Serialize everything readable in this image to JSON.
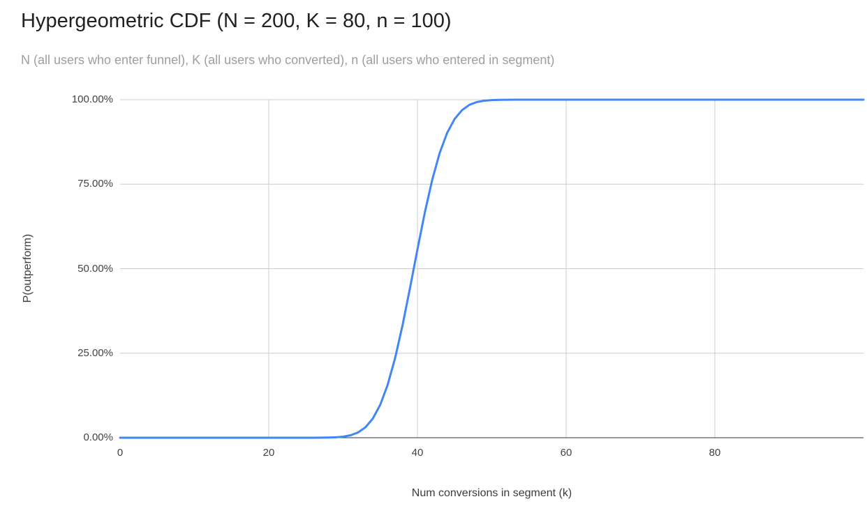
{
  "chart_data": {
    "type": "line",
    "title": "Hypergeometric CDF (N = 200, K = 80, n = 100)",
    "subtitle": "N (all users who enter funnel), K (all users who converted), n (all users who entered in segment)",
    "xlabel": "Num conversions in segment (k)",
    "ylabel": "P(outperform)",
    "xlim": [
      0,
      100
    ],
    "ylim": [
      0,
      1
    ],
    "grid": true,
    "legend_position": "none",
    "colors": {
      "series": "#4285f4",
      "gridline": "#cccccc",
      "axis_line": "#333333",
      "tick_text": "#424242",
      "title_text": "#212121",
      "subtitle_text": "#9e9e9e"
    },
    "x_ticks": [
      {
        "value": 0,
        "label": "0"
      },
      {
        "value": 20,
        "label": "20"
      },
      {
        "value": 40,
        "label": "40"
      },
      {
        "value": 60,
        "label": "60"
      },
      {
        "value": 80,
        "label": "80"
      }
    ],
    "y_ticks": [
      {
        "value": 0,
        "label": "0.00%"
      },
      {
        "value": 0.25,
        "label": "25.00%"
      },
      {
        "value": 0.5,
        "label": "50.00%"
      },
      {
        "value": 0.75,
        "label": "75.00%"
      },
      {
        "value": 1,
        "label": "100.00%"
      }
    ],
    "series": [
      {
        "name": "P(outperform)",
        "color": "#4285f4",
        "x": [
          0,
          5,
          10,
          15,
          20,
          24,
          25,
          26,
          27,
          28,
          29,
          30,
          31,
          32,
          33,
          34,
          35,
          36,
          37,
          38,
          39,
          40,
          41,
          42,
          43,
          44,
          45,
          46,
          47,
          48,
          49,
          50,
          51,
          52,
          53,
          54,
          55,
          60,
          65,
          70,
          75,
          80,
          85,
          90,
          95,
          100
        ],
        "y": [
          0,
          0,
          0,
          0,
          0,
          1e-05,
          1.5e-05,
          5e-05,
          0.00016,
          0.0005,
          0.0013,
          0.0031,
          0.0072,
          0.0154,
          0.0307,
          0.0567,
          0.0977,
          0.157,
          0.236,
          0.333,
          0.443,
          0.557,
          0.667,
          0.764,
          0.843,
          0.902,
          0.943,
          0.969,
          0.985,
          0.993,
          0.997,
          0.9987,
          0.9995,
          0.9998,
          0.9999,
          1,
          1,
          1,
          1,
          1,
          1,
          1,
          1,
          1,
          1,
          1
        ]
      }
    ]
  }
}
